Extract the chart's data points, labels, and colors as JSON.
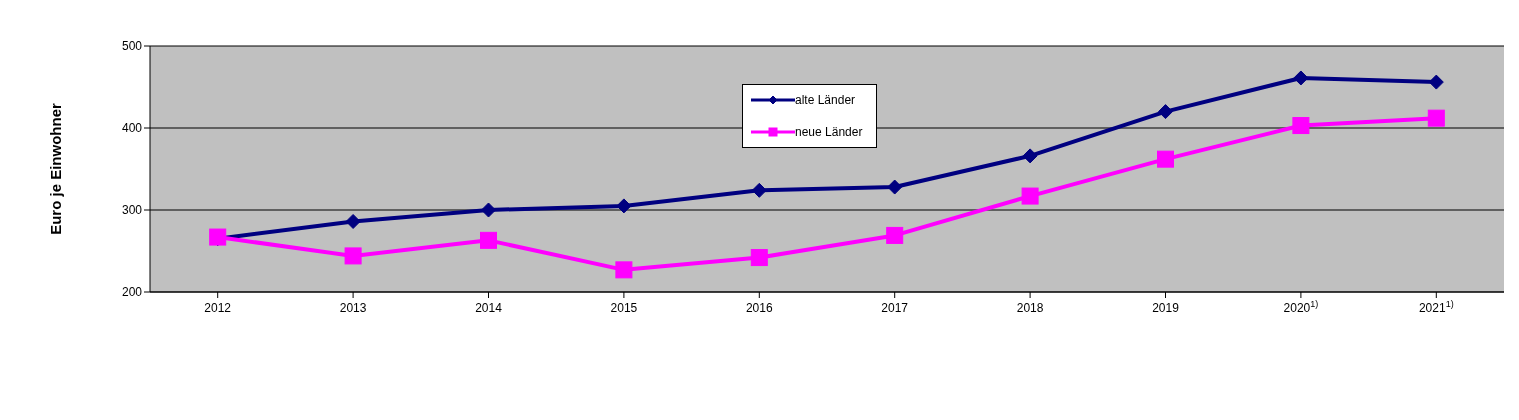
{
  "chart_data": {
    "type": "line",
    "ylabel": "Euro je Einwohner",
    "categories": [
      "2012",
      "2013",
      "2014",
      "2015",
      "2016",
      "2017",
      "2018",
      "2019",
      "2020$^{1)}$",
      "2021$^{1)}$"
    ],
    "series": [
      {
        "name": "alte Länder",
        "color": "#000080",
        "marker": "diamond",
        "values": [
          265,
          286,
          300,
          305,
          324,
          328,
          366,
          420,
          461,
          456
        ]
      },
      {
        "name": "neue Länder",
        "color": "#ff00ff",
        "marker": "square",
        "values": [
          267,
          244,
          263,
          227,
          242,
          269,
          317,
          362,
          403,
          412
        ]
      }
    ],
    "ylim": [
      200,
      500
    ],
    "yticks": [
      200,
      300,
      400,
      500
    ],
    "grid": "y",
    "legend": "top",
    "line_style": "solid"
  }
}
